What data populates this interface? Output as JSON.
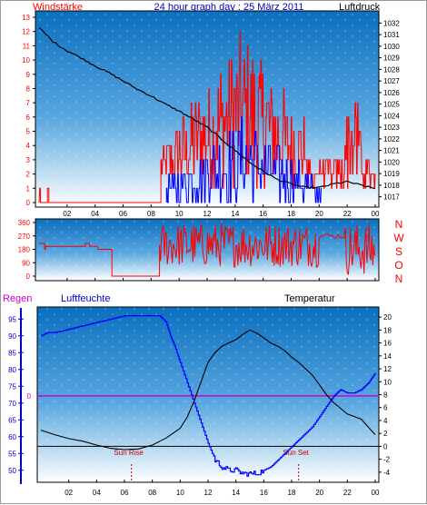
{
  "header": {
    "left_label": "Windstärke",
    "title": "24 hour graph day : 25 März 2011",
    "right_label": "Luftdruck"
  },
  "bottom_header": {
    "rain_label": "Regen",
    "humidity_label": "Luftfeuchte",
    "temperature_label": "Temperatur"
  },
  "colors": {
    "wind": "#ff0000",
    "gust": "#0000ff",
    "pressure": "#000000",
    "humidity": "#0000ff",
    "temperature": "#000000",
    "rain_line": "#cc00cc",
    "label_red": "#ff0000",
    "label_blue": "#0000cc",
    "label_magenta": "#cc00cc",
    "panel_top": "#0a6fbf",
    "panel_bottom": "#ffffff"
  },
  "chart_data": [
    {
      "id": "wind-pressure",
      "type": "line",
      "x_ticks": [
        "02",
        "04",
        "06",
        "08",
        "10",
        "12",
        "14",
        "16",
        "18",
        "20",
        "22",
        "00"
      ],
      "y_left_ticks": [
        "0",
        "1",
        "2",
        "3",
        "4",
        "5",
        "6",
        "7",
        "8",
        "9",
        "10",
        "11",
        "12",
        "13"
      ],
      "y_right_ticks": [
        "1017",
        "1018",
        "1019",
        "1020",
        "1021",
        "1022",
        "1023",
        "1024",
        "1025",
        "1026",
        "1027",
        "1028",
        "1029",
        "1030",
        "1031",
        "1032"
      ],
      "wind_ylim": [
        0,
        13
      ],
      "pressure_ylim": [
        1016.5,
        1032.5
      ],
      "series": [
        {
          "role": "pressure",
          "x": [
            0,
            1,
            2,
            3,
            4,
            5,
            6,
            7,
            8,
            9,
            10,
            11,
            12,
            13,
            14,
            15,
            16,
            17,
            18,
            19,
            20,
            21,
            22,
            23,
            24
          ],
          "values": [
            1031.6,
            1030.4,
            1029.6,
            1029.0,
            1028.3,
            1027.7,
            1027.0,
            1026.3,
            1025.7,
            1025.0,
            1024.4,
            1023.7,
            1023.0,
            1022.0,
            1021.0,
            1020.0,
            1019.2,
            1018.5,
            1018.1,
            1017.8,
            1017.8,
            1018.1,
            1018.3,
            1018.0,
            1017.7
          ]
        }
      ],
      "wind_active_from_hour": 8.7,
      "wind_peak_max": 13,
      "gust_max": 6
    },
    {
      "id": "wind-direction",
      "type": "line",
      "x_ticks": [
        "02",
        "04",
        "06",
        "08",
        "10",
        "12",
        "14",
        "16",
        "18",
        "20",
        "22",
        "00"
      ],
      "y_ticks": [
        "0",
        "90",
        "180",
        "270",
        "360"
      ],
      "ylim": [
        0,
        360
      ],
      "compass": [
        "N",
        "W",
        "S",
        "O",
        "N"
      ],
      "calm_direction": 220,
      "calm_until_hour": 8.6
    },
    {
      "id": "humidity-temperature",
      "type": "line",
      "x_ticks": [
        "02",
        "04",
        "06",
        "08",
        "10",
        "12",
        "14",
        "16",
        "18",
        "20",
        "22",
        "00"
      ],
      "y_left_ticks": [
        "50",
        "55",
        "60",
        "65",
        "70",
        "75",
        "80",
        "85",
        "90",
        "95"
      ],
      "y_right_ticks": [
        "-4",
        "-2",
        "0",
        "2",
        "4",
        "6",
        "8",
        "10",
        "12",
        "14",
        "16",
        "18",
        "20"
      ],
      "humidity_ylim": [
        47.5,
        97.5
      ],
      "temperature_ylim": [
        -5,
        21
      ],
      "rain_value_label": "0",
      "rain_value": 0,
      "sunrise_label": "Sun Rise",
      "sunset_label": "Sun Set",
      "sunrise_hour": 6.5,
      "sunset_hour": 18.5,
      "series": [
        {
          "role": "humidity",
          "x": [
            0,
            0.5,
            1,
            2,
            3,
            4,
            5,
            6,
            7,
            8,
            8.5,
            9,
            9.3,
            9.6,
            10,
            10.5,
            11,
            11.5,
            12,
            12.5,
            13,
            13.5,
            14,
            14.5,
            15,
            15.5,
            16,
            16.5,
            17,
            17.5,
            18,
            18.5,
            19,
            19.5,
            20,
            20.5,
            21,
            21.5,
            22,
            22.5,
            23,
            23.5,
            24
          ],
          "values": [
            90,
            91,
            91,
            92,
            93,
            94,
            95,
            96,
            96,
            96,
            96,
            94,
            90,
            87,
            82,
            76,
            70,
            64,
            58,
            53,
            51,
            50,
            50,
            49,
            49,
            49,
            50,
            51,
            53,
            55,
            57,
            59,
            61,
            63,
            66,
            69,
            72,
            74,
            73,
            73,
            74,
            76,
            79
          ]
        },
        {
          "role": "temperature",
          "x": [
            0,
            1,
            2,
            3,
            4,
            5,
            6,
            7,
            8,
            9,
            10,
            10.5,
            11,
            11.5,
            12,
            12.5,
            13,
            14,
            14.5,
            15,
            15.5,
            16,
            16.5,
            17,
            17.5,
            18,
            18.5,
            19,
            19.5,
            20,
            20.5,
            21,
            22,
            23,
            23.5,
            24
          ],
          "values": [
            2.5,
            1.8,
            1.2,
            0.8,
            0.2,
            -0.3,
            -0.5,
            -0.4,
            0.2,
            1.3,
            2.8,
            4.5,
            7.0,
            10.0,
            13.0,
            14.5,
            15.5,
            16.5,
            17.3,
            18.0,
            17.5,
            16.8,
            16.0,
            15.5,
            14.8,
            13.8,
            13.0,
            12.0,
            11.0,
            9.5,
            8.0,
            6.8,
            5.0,
            4.2,
            3.0,
            1.8
          ]
        }
      ]
    }
  ]
}
